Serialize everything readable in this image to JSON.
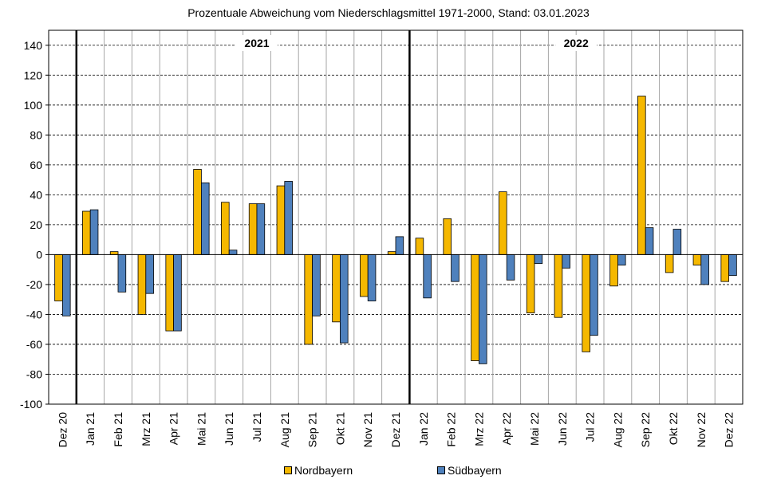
{
  "colors": {
    "nordbayern": "#f5b800",
    "suedbayern": "#4f81bd",
    "grid": "#000000",
    "background": "#ffffff"
  },
  "chart_data": {
    "type": "bar",
    "title": "Prozentuale  Abweichung vom Niederschlagsmittel 1971-2000,  Stand:  03.01.2023",
    "xlabel": "",
    "ylabel": "",
    "ylim": [
      -100,
      150
    ],
    "yticks": [
      -100,
      -80,
      -60,
      -40,
      -20,
      0,
      20,
      40,
      60,
      80,
      100,
      120,
      140
    ],
    "grid": true,
    "legend_position": "bottom",
    "categories": [
      "Dez 20",
      "Jan 21",
      "Feb 21",
      "Mrz 21",
      "Apr 21",
      "Mai 21",
      "Jun 21",
      "Jul 21",
      "Aug 21",
      "Sep 21",
      "Okt 21",
      "Nov 21",
      "Dez 21",
      "Jan 22",
      "Feb 22",
      "Mrz 22",
      "Apr 22",
      "Mai 22",
      "Jun 22",
      "Jul 22",
      "Aug 22",
      "Sep 22",
      "Okt 22",
      "Nov 22",
      "Dez 22"
    ],
    "series": [
      {
        "name": "Nordbayern",
        "values": [
          -31,
          29,
          2,
          -40,
          -51,
          57,
          35,
          34,
          46,
          -60,
          -45,
          -28,
          2,
          11,
          24,
          -71,
          42,
          -39,
          -42,
          -65,
          -21,
          106,
          -12,
          -7,
          -18
        ]
      },
      {
        "name": "Südbayern",
        "values": [
          -41,
          30,
          -25,
          -26,
          -51,
          48,
          3,
          34,
          49,
          -41,
          -59,
          -31,
          12,
          -29,
          -18,
          -73,
          -17,
          -6,
          -9,
          -54,
          -7,
          18,
          17,
          -20,
          -14
        ]
      }
    ],
    "annotations": [
      {
        "text": "2021",
        "after_category": "Dez 20"
      },
      {
        "text": "2022",
        "after_category": "Dez 21"
      }
    ]
  }
}
